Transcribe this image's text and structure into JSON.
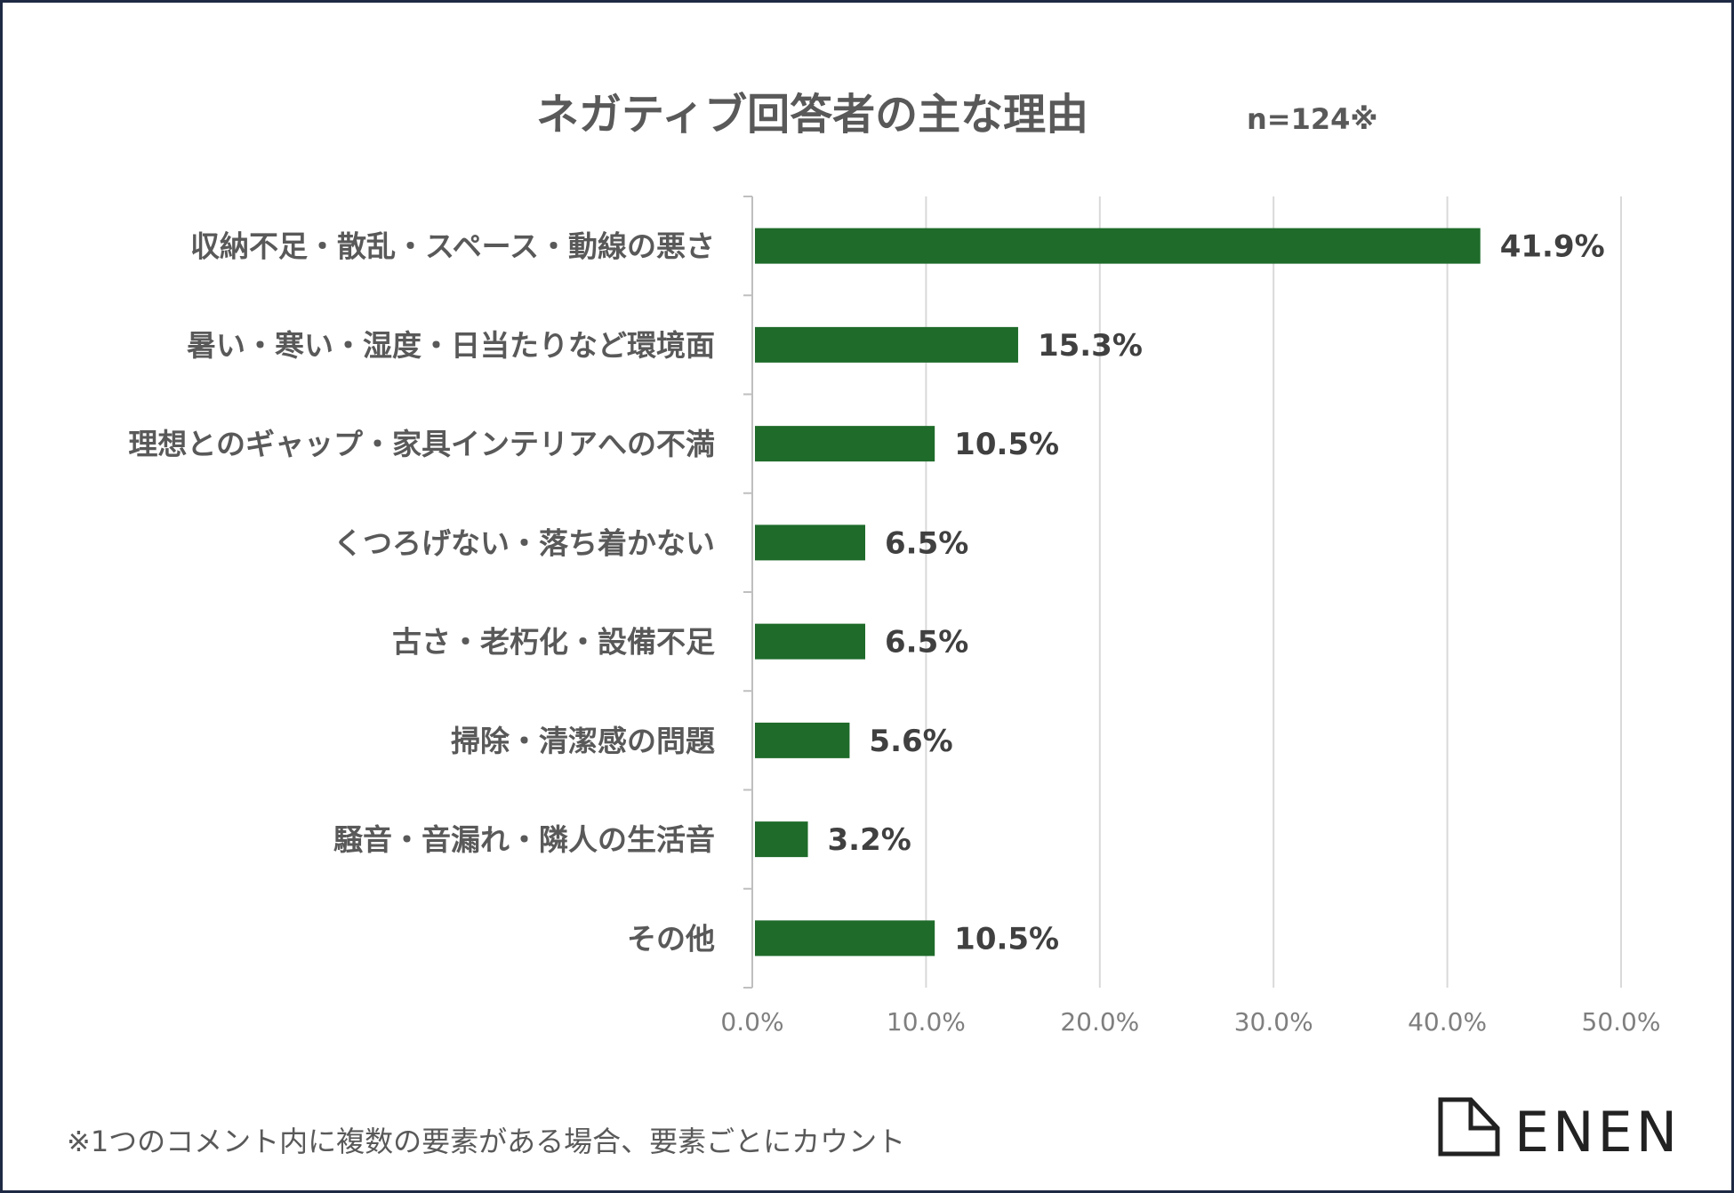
{
  "chart_data": {
    "type": "bar",
    "orientation": "horizontal",
    "title": "ネガティブ回答者の主な理由",
    "subtitle": "n=124※",
    "categories": [
      "収納不足・散乱・スペース・動線の悪さ",
      "暑い・寒い・湿度・日当たりなど環境面",
      "理想とのギャップ・家具インテリアへの不満",
      "くつろげない・落ち着かない",
      "古さ・老朽化・設備不足",
      "掃除・清潔感の問題",
      "騒音・音漏れ・隣人の生活音",
      "その他"
    ],
    "values": [
      41.9,
      15.3,
      10.5,
      6.5,
      6.5,
      5.6,
      3.2,
      10.5
    ],
    "data_labels": [
      "41.9%",
      "15.3%",
      "10.5%",
      "6.5%",
      "6.5%",
      "5.6%",
      "3.2%",
      "10.5%"
    ],
    "xlim": [
      0,
      50
    ],
    "xticks": [
      0,
      10,
      20,
      30,
      40,
      50
    ],
    "xtick_labels": [
      "0.0%",
      "10.0%",
      "20.0%",
      "30.0%",
      "40.0%",
      "50.0%"
    ],
    "xlabel": "",
    "ylabel": "",
    "grid": true,
    "bar_color": "#1e6b2a",
    "grid_color": "#d9d9d9"
  },
  "footnote": "※1つのコメント内に複数の要素がある場合、要素ごとにカウント",
  "logo": {
    "text": "ENEN",
    "icon": "house-outline-icon"
  }
}
